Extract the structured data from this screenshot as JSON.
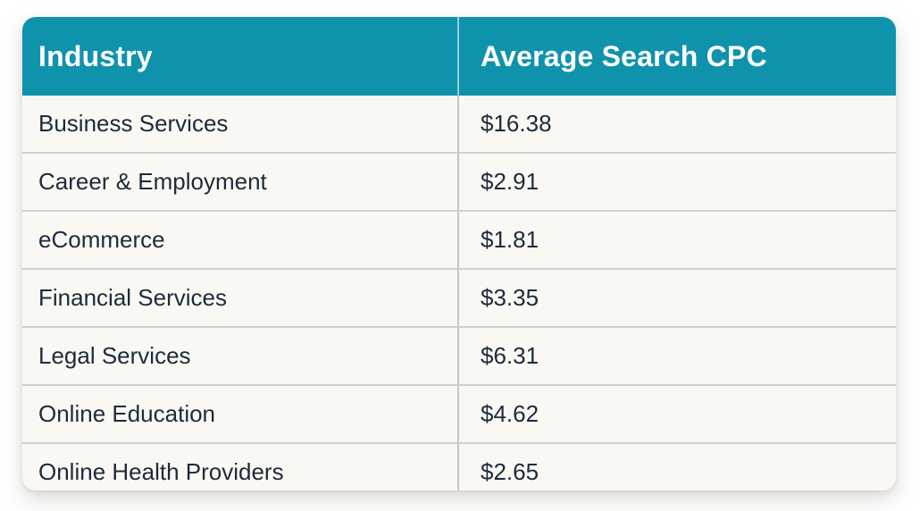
{
  "colors": {
    "header_bg": "#0F93AD",
    "header_text": "#FFFFFF",
    "body_bg": "#FAF8F2",
    "body_text": "#1C2B3E",
    "row_divider": "#CDD0D3",
    "column_divider_body": "#C3C6C9",
    "column_divider_header": "rgba(255,255,255,0.55)"
  },
  "table": {
    "headers": [
      "Industry",
      "Average Search CPC"
    ],
    "rows": [
      [
        "Business Services",
        "$16.38"
      ],
      [
        "Career & Employment",
        "$2.91"
      ],
      [
        "eCommerce",
        "$1.81"
      ],
      [
        "Financial Services",
        "$3.35"
      ],
      [
        "Legal Services",
        "$6.31"
      ],
      [
        "Online Education",
        "$4.62"
      ],
      [
        "Online Health Providers",
        "$2.65"
      ]
    ]
  },
  "chart_data": {
    "type": "table",
    "columns": [
      "Industry",
      "Average Search CPC"
    ],
    "categories": [
      "Business Services",
      "Career & Employment",
      "eCommerce",
      "Financial Services",
      "Legal Services",
      "Online Education",
      "Online Health Providers"
    ],
    "values": [
      16.38,
      2.91,
      1.81,
      3.35,
      6.31,
      4.62,
      2.65
    ],
    "value_format": "currency-usd"
  }
}
